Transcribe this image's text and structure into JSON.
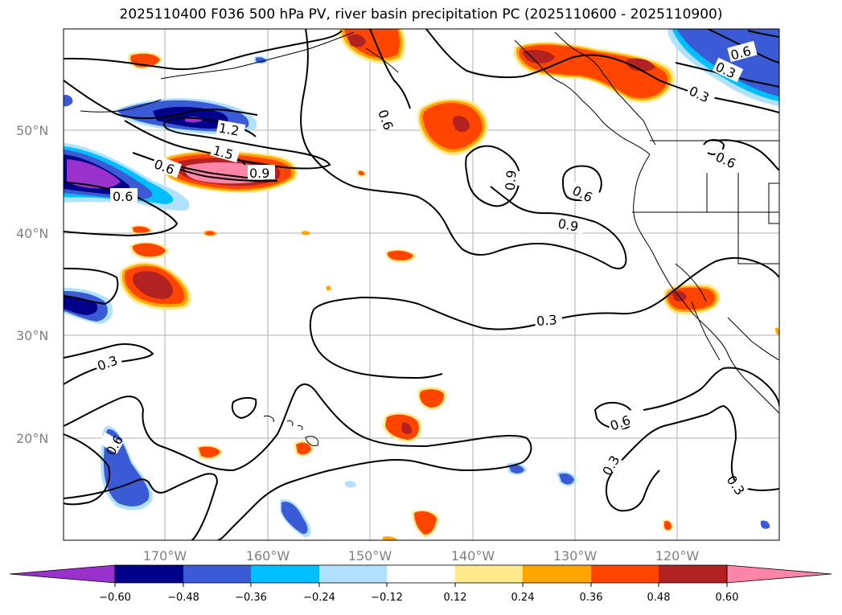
{
  "title": "2025110400 F036 500 hPa PV, river basin precipitation PC (2025110600 - 2025110900)",
  "lat_labels": [
    "50°N",
    "40°N",
    "30°N",
    "20°N"
  ],
  "lon_labels": [
    "170°W",
    "160°W",
    "150°W",
    "140°W",
    "130°W",
    "120°W"
  ],
  "contour_labels": [
    "0.6",
    "0.3",
    "0.6",
    "0.3",
    "1.2",
    "1.5",
    "0.6",
    "0.9",
    "0.6",
    "0.6",
    "0.9",
    "0.6",
    "0.6",
    "0.9",
    "0.3",
    "0.3",
    "0.3",
    "0.6",
    "0.3",
    "0.3",
    "0.3",
    "0.3"
  ],
  "colorbar": {
    "ticks": [
      "−0.60",
      "−0.48",
      "−0.36",
      "−0.24",
      "−0.12",
      "0.12",
      "0.24",
      "0.36",
      "0.48",
      "0.60"
    ],
    "colors": [
      "#9932cc",
      "#00008b",
      "#3b5bd6",
      "#00bfff",
      "#b0e2ff",
      "#ffffff",
      "#ffe98a",
      "#ffa500",
      "#ff4500",
      "#b22222",
      "#ff85a8"
    ]
  },
  "colors": {
    "n1": "#9932cc",
    "n2": "#00008b",
    "n3": "#3b5bd6",
    "n4": "#00bfff",
    "n5": "#b0e2ff",
    "p1": "#ffe98a",
    "p2": "#ffa500",
    "p3": "#ff4500",
    "p4": "#b22222",
    "p5": "#ff85a8"
  }
}
